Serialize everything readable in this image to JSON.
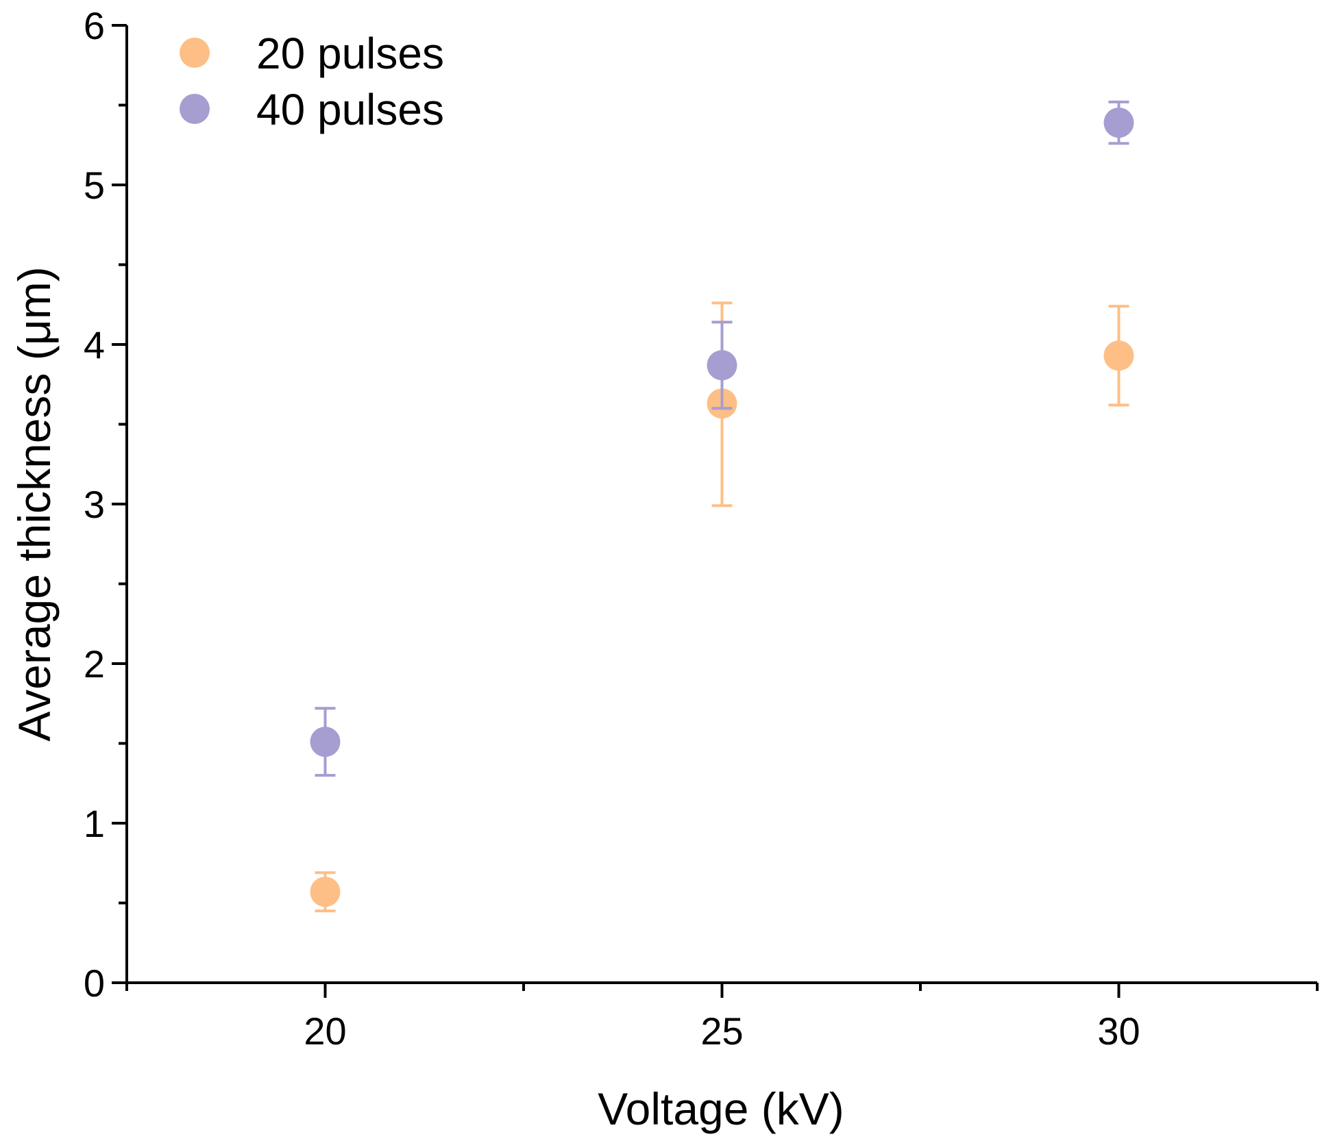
{
  "chart_data": {
    "type": "scatter",
    "title": "",
    "xlabel": "Voltage (kV)",
    "ylabel": "Average thickness (μm)",
    "xlim": [
      17.5,
      32.5
    ],
    "ylim": [
      0,
      6
    ],
    "x_ticks": [
      20,
      25,
      30
    ],
    "x_tick_labels": [
      "20",
      "25",
      "30"
    ],
    "y_ticks": [
      0,
      1,
      2,
      3,
      4,
      5,
      6
    ],
    "y_tick_labels": [
      "0",
      "1",
      "2",
      "3",
      "4",
      "5",
      "6"
    ],
    "legend_position": "top-left",
    "grid": false,
    "series": [
      {
        "name": "20 pulses",
        "color": "#FDBF86",
        "x": [
          20,
          25,
          30
        ],
        "y": [
          0.57,
          3.63,
          3.93
        ],
        "err_low": [
          0.45,
          2.99,
          3.62
        ],
        "err_high": [
          0.69,
          4.26,
          4.24
        ]
      },
      {
        "name": "40 pulses",
        "color": "#A69DD0",
        "x": [
          20,
          25,
          30
        ],
        "y": [
          1.51,
          3.87,
          5.39
        ],
        "err_low": [
          1.3,
          3.6,
          5.26
        ],
        "err_high": [
          1.72,
          4.14,
          5.52
        ]
      }
    ]
  }
}
